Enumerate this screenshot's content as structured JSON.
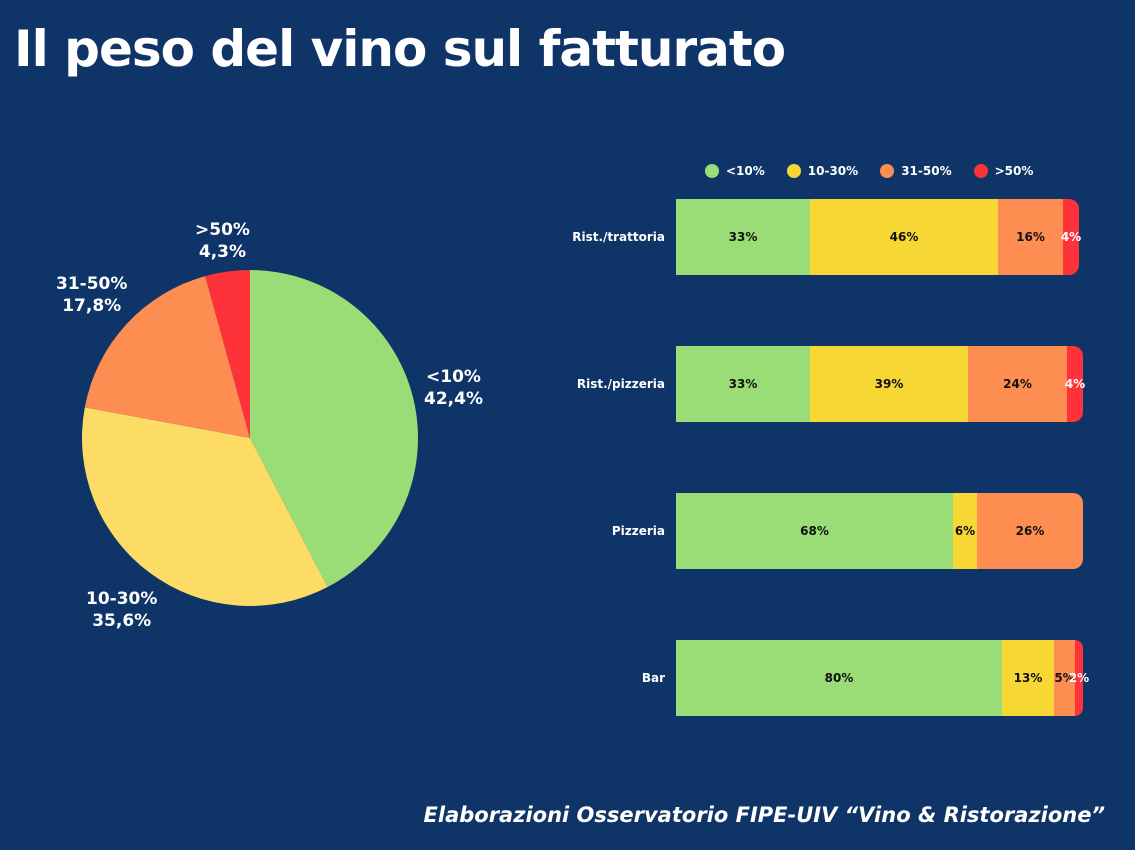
{
  "title": "Il peso del vino sul fatturato",
  "footer": "Elaborazioni Osservatorio FIPE-UIV “Vino & Ristorazione”",
  "colors": {
    "background": "#0F3468",
    "lt10": "#9ADD76",
    "b10_30_bar": "#F7D733",
    "b10_30_pie": "#FCDC64",
    "b31_50": "#FE8D52",
    "gt50": "#FD3339"
  },
  "legend": [
    {
      "label": "<10%",
      "color": "#9ADD76"
    },
    {
      "label": "10-30%",
      "color": "#F7D733"
    },
    {
      "label": "31-50%",
      "color": "#FE8D52"
    },
    {
      "label": ">50%",
      "color": "#FD3339"
    }
  ],
  "pie": {
    "slices": [
      {
        "category": "<10%",
        "value": "42,4%"
      },
      {
        "category": "10-30%",
        "value": "35,6%"
      },
      {
        "category": "31-50%",
        "value": "17,8%"
      },
      {
        "category": ">50%",
        "value": "4,3%"
      }
    ]
  },
  "bars": [
    {
      "label": "Rist./trattoria",
      "segments": [
        "33%",
        "46%",
        "16%",
        "4%"
      ]
    },
    {
      "label": "Rist./pizzeria",
      "segments": [
        "33%",
        "39%",
        "24%",
        "4%"
      ]
    },
    {
      "label": "Pizzeria",
      "segments": [
        "68%",
        "6%",
        "26%"
      ]
    },
    {
      "label": "Bar",
      "segments": [
        "80%",
        "13%",
        "5%",
        "2%"
      ]
    }
  ],
  "chart_data": [
    {
      "type": "pie",
      "title": "Il peso del vino sul fatturato",
      "categories": [
        "<10%",
        "10-30%",
        "31-50%",
        ">50%"
      ],
      "values": [
        42.4,
        35.6,
        17.8,
        4.3
      ],
      "labels": [
        "<10%\n42,4%",
        "10-30%\n35,6%",
        "31-50%\n17,8%",
        ">50%\n4,3%"
      ],
      "colors": [
        "#9ADD76",
        "#FCDC64",
        "#FE8D52",
        "#FD3339"
      ],
      "start_angle": "12 o'clock, clockwise"
    },
    {
      "type": "bar",
      "orientation": "horizontal",
      "stacked": true,
      "normalized": true,
      "categories": [
        "Rist./trattoria",
        "Rist./pizzeria",
        "Pizzeria",
        "Bar"
      ],
      "series": [
        {
          "name": "<10%",
          "values": [
            33,
            33,
            68,
            80
          ],
          "color": "#9ADD76"
        },
        {
          "name": "10-30%",
          "values": [
            46,
            39,
            6,
            13
          ],
          "color": "#F7D733"
        },
        {
          "name": "31-50%",
          "values": [
            16,
            24,
            26,
            5
          ],
          "color": "#FE8D52"
        },
        {
          "name": ">50%",
          "values": [
            4,
            4,
            0,
            2
          ],
          "color": "#FD3339"
        }
      ],
      "legend_position": "top",
      "grid": false,
      "xlim": [
        0,
        100
      ]
    }
  ]
}
